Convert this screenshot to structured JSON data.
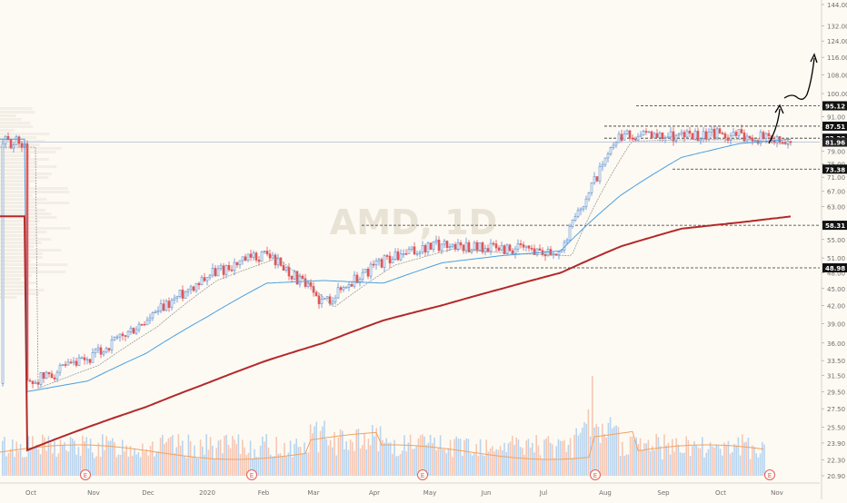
{
  "watermark": {
    "symbol": "AMD",
    "interval": "1D"
  },
  "colors": {
    "background": "#fdfaf3",
    "up_candle": "#5b8fd6",
    "down_candle": "#e0555a",
    "sma_short": "#9a9a9a",
    "sma_mid": "#4a9fe0",
    "sma_long": "#b22a2a",
    "volume_avg": "#f0a360",
    "volume_up": "#b9d4ef",
    "volume_down": "#f6c7b4",
    "price_label_bg": "#111111",
    "current_price_bg": "#222222",
    "earnings_marker": "#e06060"
  },
  "y_axis_ticks": [
    "144.00",
    "132.00",
    "124.00",
    "116.00",
    "108.00",
    "100.00",
    "95.00",
    "91.00",
    "87.00",
    "83.00",
    "79.00",
    "75.00",
    "71.00",
    "67.00",
    "63.00",
    "59.00",
    "55.00",
    "51.00",
    "48.00",
    "45.00",
    "42.00",
    "39.00",
    "36.00",
    "33.50",
    "31.50",
    "29.50",
    "27.50",
    "25.50",
    "23.90",
    "22.30",
    "20.90"
  ],
  "x_axis_labels": [
    "Oct",
    "Nov",
    "Dec",
    "2020",
    "Feb",
    "Mar",
    "Apr",
    "May",
    "Jun",
    "Jul",
    "Aug",
    "Sep",
    "Oct",
    "Nov"
  ],
  "price_level_labels": [
    "95.12",
    "87.51",
    "83.30",
    "73.38",
    "58.31",
    "48.98"
  ],
  "current_price": "81.96",
  "earnings_markers": [
    "E",
    "E",
    "E",
    "E",
    "E"
  ],
  "chart_data": {
    "type": "line",
    "title": "AMD, 1D",
    "xlabel": "",
    "ylabel": "",
    "y_scale": "log",
    "ylim": [
      20.9,
      144
    ],
    "x": [
      "2019-10-01",
      "2019-11-01",
      "2019-12-01",
      "2020-01-01",
      "2020-02-01",
      "2020-03-01",
      "2020-04-01",
      "2020-05-01",
      "2020-06-01",
      "2020-07-01",
      "2020-08-01",
      "2020-09-01",
      "2020-10-01",
      "2020-10-28"
    ],
    "series": [
      {
        "values": [
          30.5,
          33.5,
          39.2,
          47.5,
          52.0,
          42.5,
          50.5,
          54.0,
          53.0,
          52.5,
          84.0,
          84.5,
          84.5,
          81.96
        ]
      },
      {
        "values": [
          29.5,
          30.8,
          34.5,
          40.0,
          46.0,
          46.5,
          46.0,
          50.0,
          51.5,
          52.5,
          66.0,
          77.0,
          81.5,
          83.0
        ]
      },
      {
        "values": [
          23.2,
          25.5,
          27.7,
          30.5,
          33.5,
          36.0,
          39.5,
          42.0,
          45.0,
          48.0,
          53.5,
          57.5,
          59.0,
          60.5
        ]
      }
    ],
    "horizontal_levels": [
      95.12,
      87.51,
      83.3,
      73.38,
      58.31,
      48.98
    ],
    "legend": "none",
    "grid": false
  }
}
